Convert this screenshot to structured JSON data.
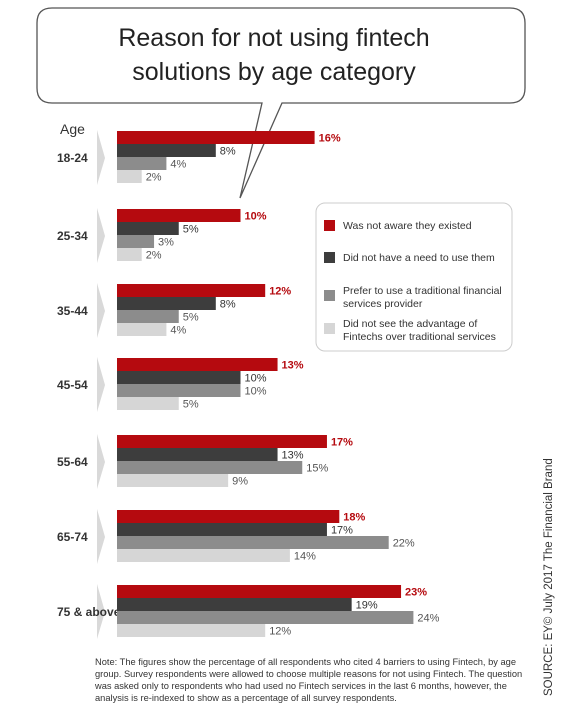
{
  "colors": {
    "red": "#b50a0f",
    "dark": "#3d3d3d",
    "mid": "#8c8c8c",
    "light": "#d6d6d6"
  },
  "chart_data": {
    "type": "bar",
    "orientation": "horizontal",
    "title": "Reason for not using fintech solutions by age category",
    "title_lines": [
      "Reason for not using fintech",
      "solutions by age category"
    ],
    "category_header": "Age",
    "categories": [
      "18-24",
      "25-34",
      "35-44",
      "45-54",
      "55-64",
      "65-74",
      "75 & above"
    ],
    "unit": "%",
    "xlim": [
      0,
      25
    ],
    "grid": false,
    "legend_position": "right",
    "series": [
      {
        "name": "Was not aware they existed",
        "color": "#b50a0f",
        "values": [
          16,
          10,
          12,
          13,
          17,
          18,
          23
        ]
      },
      {
        "name": "Did not have a need to use them",
        "color": "#3d3d3d",
        "values": [
          8,
          5,
          8,
          10,
          13,
          17,
          19
        ]
      },
      {
        "name": "Prefer to use a traditional financial services provider",
        "color": "#8c8c8c",
        "values": [
          4,
          3,
          5,
          10,
          15,
          22,
          24
        ]
      },
      {
        "name": "Did not see the advantage of Fintechs over traditional services",
        "color": "#d6d6d6",
        "values": [
          2,
          2,
          4,
          5,
          9,
          14,
          12
        ]
      }
    ],
    "legend_lines": [
      [
        "Was not aware they existed"
      ],
      [
        "Did not have a need to use them"
      ],
      [
        "Prefer to use a traditional financial",
        "services provider"
      ],
      [
        "Did not see the advantage of",
        "Fintechs over traditional services"
      ]
    ]
  },
  "note": "Note: The figures show the percentage of all respondents who cited 4 barriers to using Fintech, by age group. Survey respondents were allowed to choose multiple reasons for not using Fintech. The question was asked only to respondents who had used no Fintech services in the last 6 months, however, the analysis is re-indexed to show as a percentage of all survey respondents.",
  "source": "SOURCE: EY© July 2017 The Financial Brand"
}
